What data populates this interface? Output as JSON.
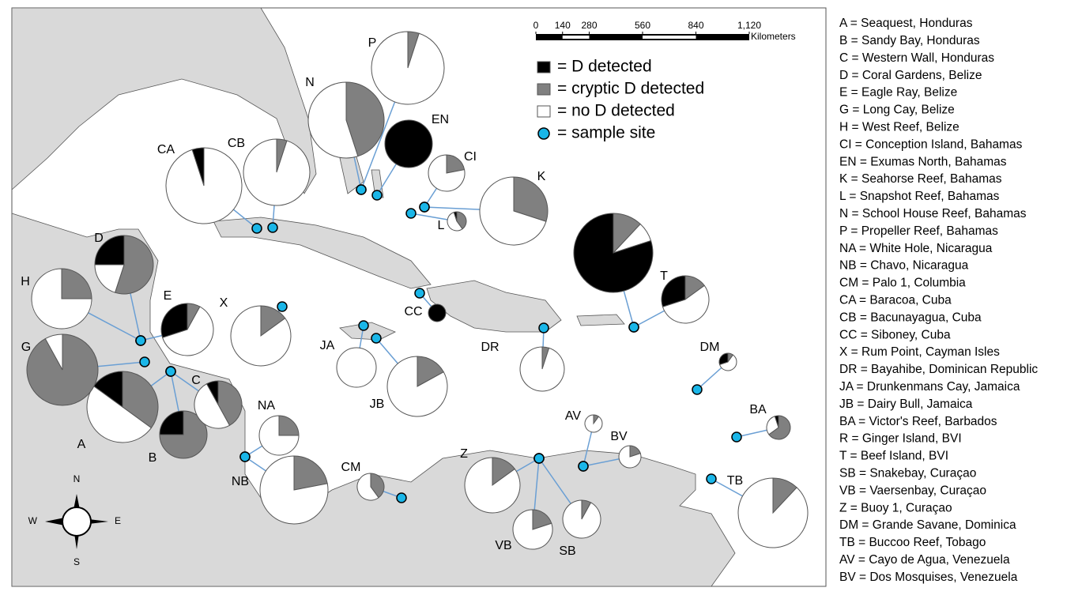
{
  "legend": [
    {
      "label": "= D detected",
      "color": "#000000"
    },
    {
      "label": "= cryptic D detected",
      "color": "#808080"
    },
    {
      "label": "= no D detected",
      "color": "#ffffff"
    },
    {
      "label": "= sample site",
      "color": "#1ab6e8"
    }
  ],
  "scale_bar": {
    "ticks": [
      0,
      140,
      280,
      560,
      840,
      {
        "value": 1120,
        "label": "1,120"
      }
    ],
    "unit": "Kilometers"
  },
  "compass": {
    "north": "N",
    "east": "E",
    "south": "S",
    "west": "W"
  },
  "key": [
    "A = Seaquest, Honduras",
    "B = Sandy Bay, Honduras",
    "C = Western Wall, Honduras",
    "D = Coral Gardens, Belize",
    "E = Eagle Ray, Belize",
    "G = Long Cay, Belize",
    "H = West Reef, Belize",
    "CI = Conception Island, Bahamas",
    "EN = Exumas North, Bahamas",
    "K = Seahorse Reef, Bahamas",
    "L = Snapshot Reef, Bahamas",
    "N = School House Reef, Bahamas",
    "P = Propeller Reef, Bahamas",
    "NA = White Hole, Nicaragua",
    "NB = Chavo, Nicaragua",
    "CM = Palo 1, Columbia",
    "CA = Baracoa, Cuba",
    "CB = Bacunayagua, Cuba",
    "CC = Siboney, Cuba",
    "X = Rum Point, Cayman Isles",
    "DR = Bayahibe, Dominican Republic",
    "JA = Drunkenmans Cay, Jamaica",
    "JB = Dairy Bull, Jamaica",
    "BA = Victor's Reef, Barbados",
    "R = Ginger Island, BVI",
    "T = Beef Island, BVI",
    "SB = Snakebay, Curaçao",
    "VB = Vaersenbay, Curaçao",
    "Z = Buoy 1, Curaçao",
    "DM = Grande Savane, Dominica",
    "TB = Buccoo Reef, Tobago",
    "AV = Cayo de Agua, Venezuela",
    "BV = Dos Mosquises, Venezuela"
  ],
  "sites": [
    {
      "code": "A",
      "d": 15,
      "cryptic": 35,
      "none": 50
    },
    {
      "code": "B",
      "d": 25,
      "cryptic": 75,
      "none": 0
    },
    {
      "code": "C",
      "d": 8,
      "cryptic": 42,
      "none": 50
    },
    {
      "code": "D",
      "d": 25,
      "cryptic": 55,
      "none": 20
    },
    {
      "code": "E",
      "d": 30,
      "cryptic": 8,
      "none": 62
    },
    {
      "code": "G",
      "d": 0,
      "cryptic": 92,
      "none": 8
    },
    {
      "code": "H",
      "d": 0,
      "cryptic": 25,
      "none": 75
    },
    {
      "code": "CI",
      "d": 0,
      "cryptic": 22,
      "none": 78
    },
    {
      "code": "EN",
      "d": 100,
      "cryptic": 0,
      "none": 0
    },
    {
      "code": "K",
      "d": 0,
      "cryptic": 30,
      "none": 70
    },
    {
      "code": "L",
      "d": 5,
      "cryptic": 40,
      "none": 55
    },
    {
      "code": "N",
      "d": 0,
      "cryptic": 45,
      "none": 55
    },
    {
      "code": "P",
      "d": 0,
      "cryptic": 5,
      "none": 95
    },
    {
      "code": "NA",
      "d": 0,
      "cryptic": 25,
      "none": 75
    },
    {
      "code": "NB",
      "d": 0,
      "cryptic": 22,
      "none": 78
    },
    {
      "code": "CM",
      "d": 0,
      "cryptic": 40,
      "none": 60
    },
    {
      "code": "CA",
      "d": 5,
      "cryptic": 0,
      "none": 95
    },
    {
      "code": "CB",
      "d": 0,
      "cryptic": 5,
      "none": 95
    },
    {
      "code": "CC",
      "d": 100,
      "cryptic": 0,
      "none": 0
    },
    {
      "code": "X",
      "d": 0,
      "cryptic": 15,
      "none": 85
    },
    {
      "code": "DR",
      "d": 0,
      "cryptic": 5,
      "none": 95
    },
    {
      "code": "JA",
      "d": 0,
      "cryptic": 0,
      "none": 100
    },
    {
      "code": "JB",
      "d": 0,
      "cryptic": 17,
      "none": 83
    },
    {
      "code": "BA",
      "d": 5,
      "cryptic": 65,
      "none": 30
    },
    {
      "code": "R",
      "d": 80,
      "cryptic": 12,
      "none": 8
    },
    {
      "code": "T",
      "d": 30,
      "cryptic": 15,
      "none": 55
    },
    {
      "code": "SB",
      "d": 0,
      "cryptic": 8,
      "none": 92
    },
    {
      "code": "VB",
      "d": 0,
      "cryptic": 20,
      "none": 80
    },
    {
      "code": "Z",
      "d": 0,
      "cryptic": 15,
      "none": 85
    },
    {
      "code": "DM",
      "d": 30,
      "cryptic": 10,
      "none": 60
    },
    {
      "code": "TB",
      "d": 0,
      "cryptic": 12,
      "none": 88
    },
    {
      "code": "AV",
      "d": 0,
      "cryptic": 10,
      "none": 90
    },
    {
      "code": "BV",
      "d": 0,
      "cryptic": 20,
      "none": 80
    }
  ]
}
